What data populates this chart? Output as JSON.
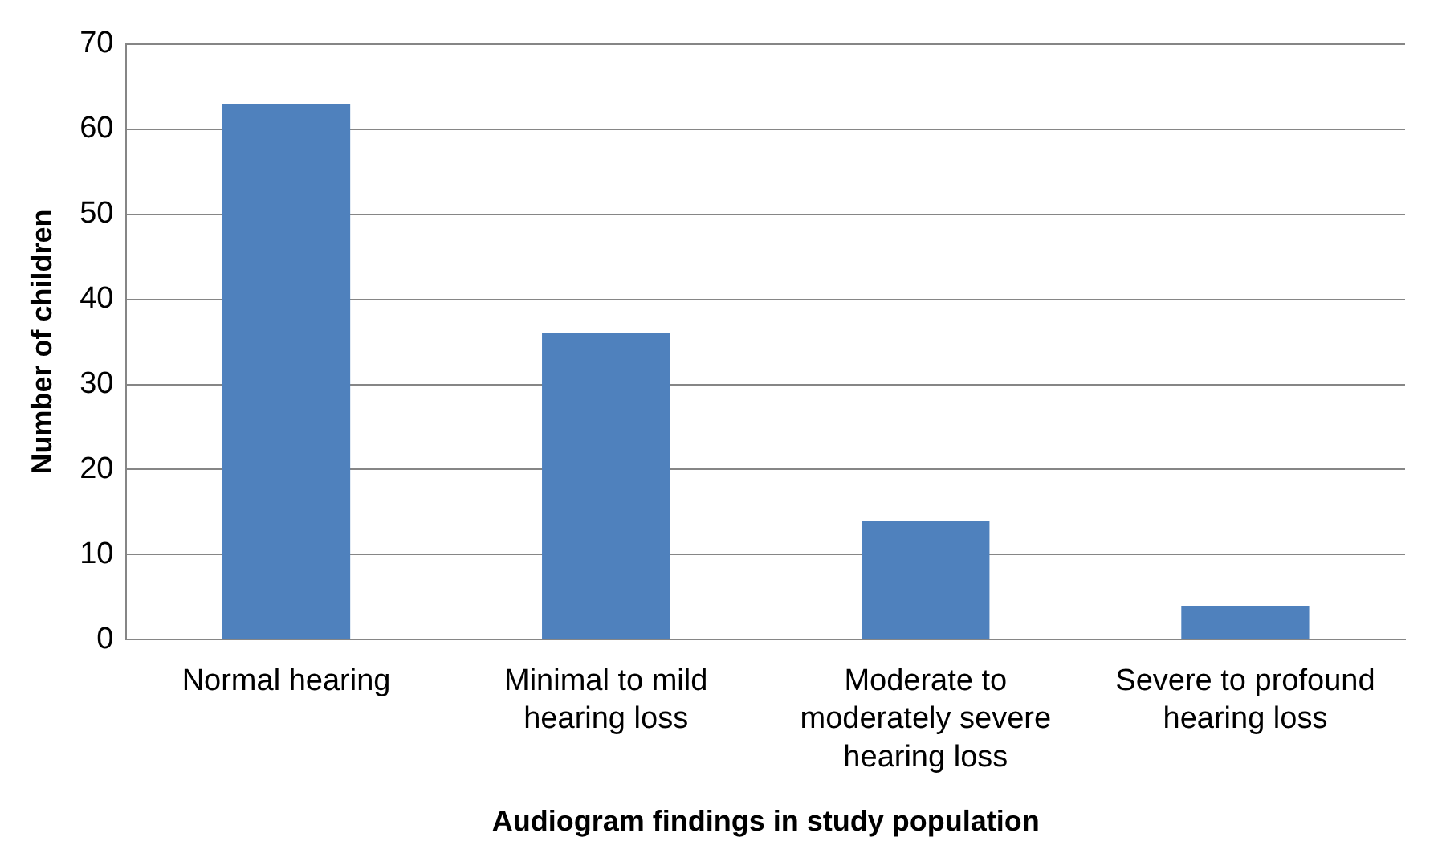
{
  "chart_data": {
    "type": "bar",
    "xlabel": "Audiogram findings in study population",
    "ylabel": "Number of children",
    "categories": [
      "Normal hearing",
      "Minimal to mild hearing loss",
      "Moderate to moderately severe hearing loss",
      "Severe to profound hearing loss"
    ],
    "values": [
      63,
      36,
      14,
      4
    ],
    "color": "#4f81bd",
    "ylim": [
      0,
      70
    ],
    "yticks": [
      0,
      10,
      20,
      30,
      40,
      50,
      60,
      70
    ],
    "grid": "y"
  }
}
